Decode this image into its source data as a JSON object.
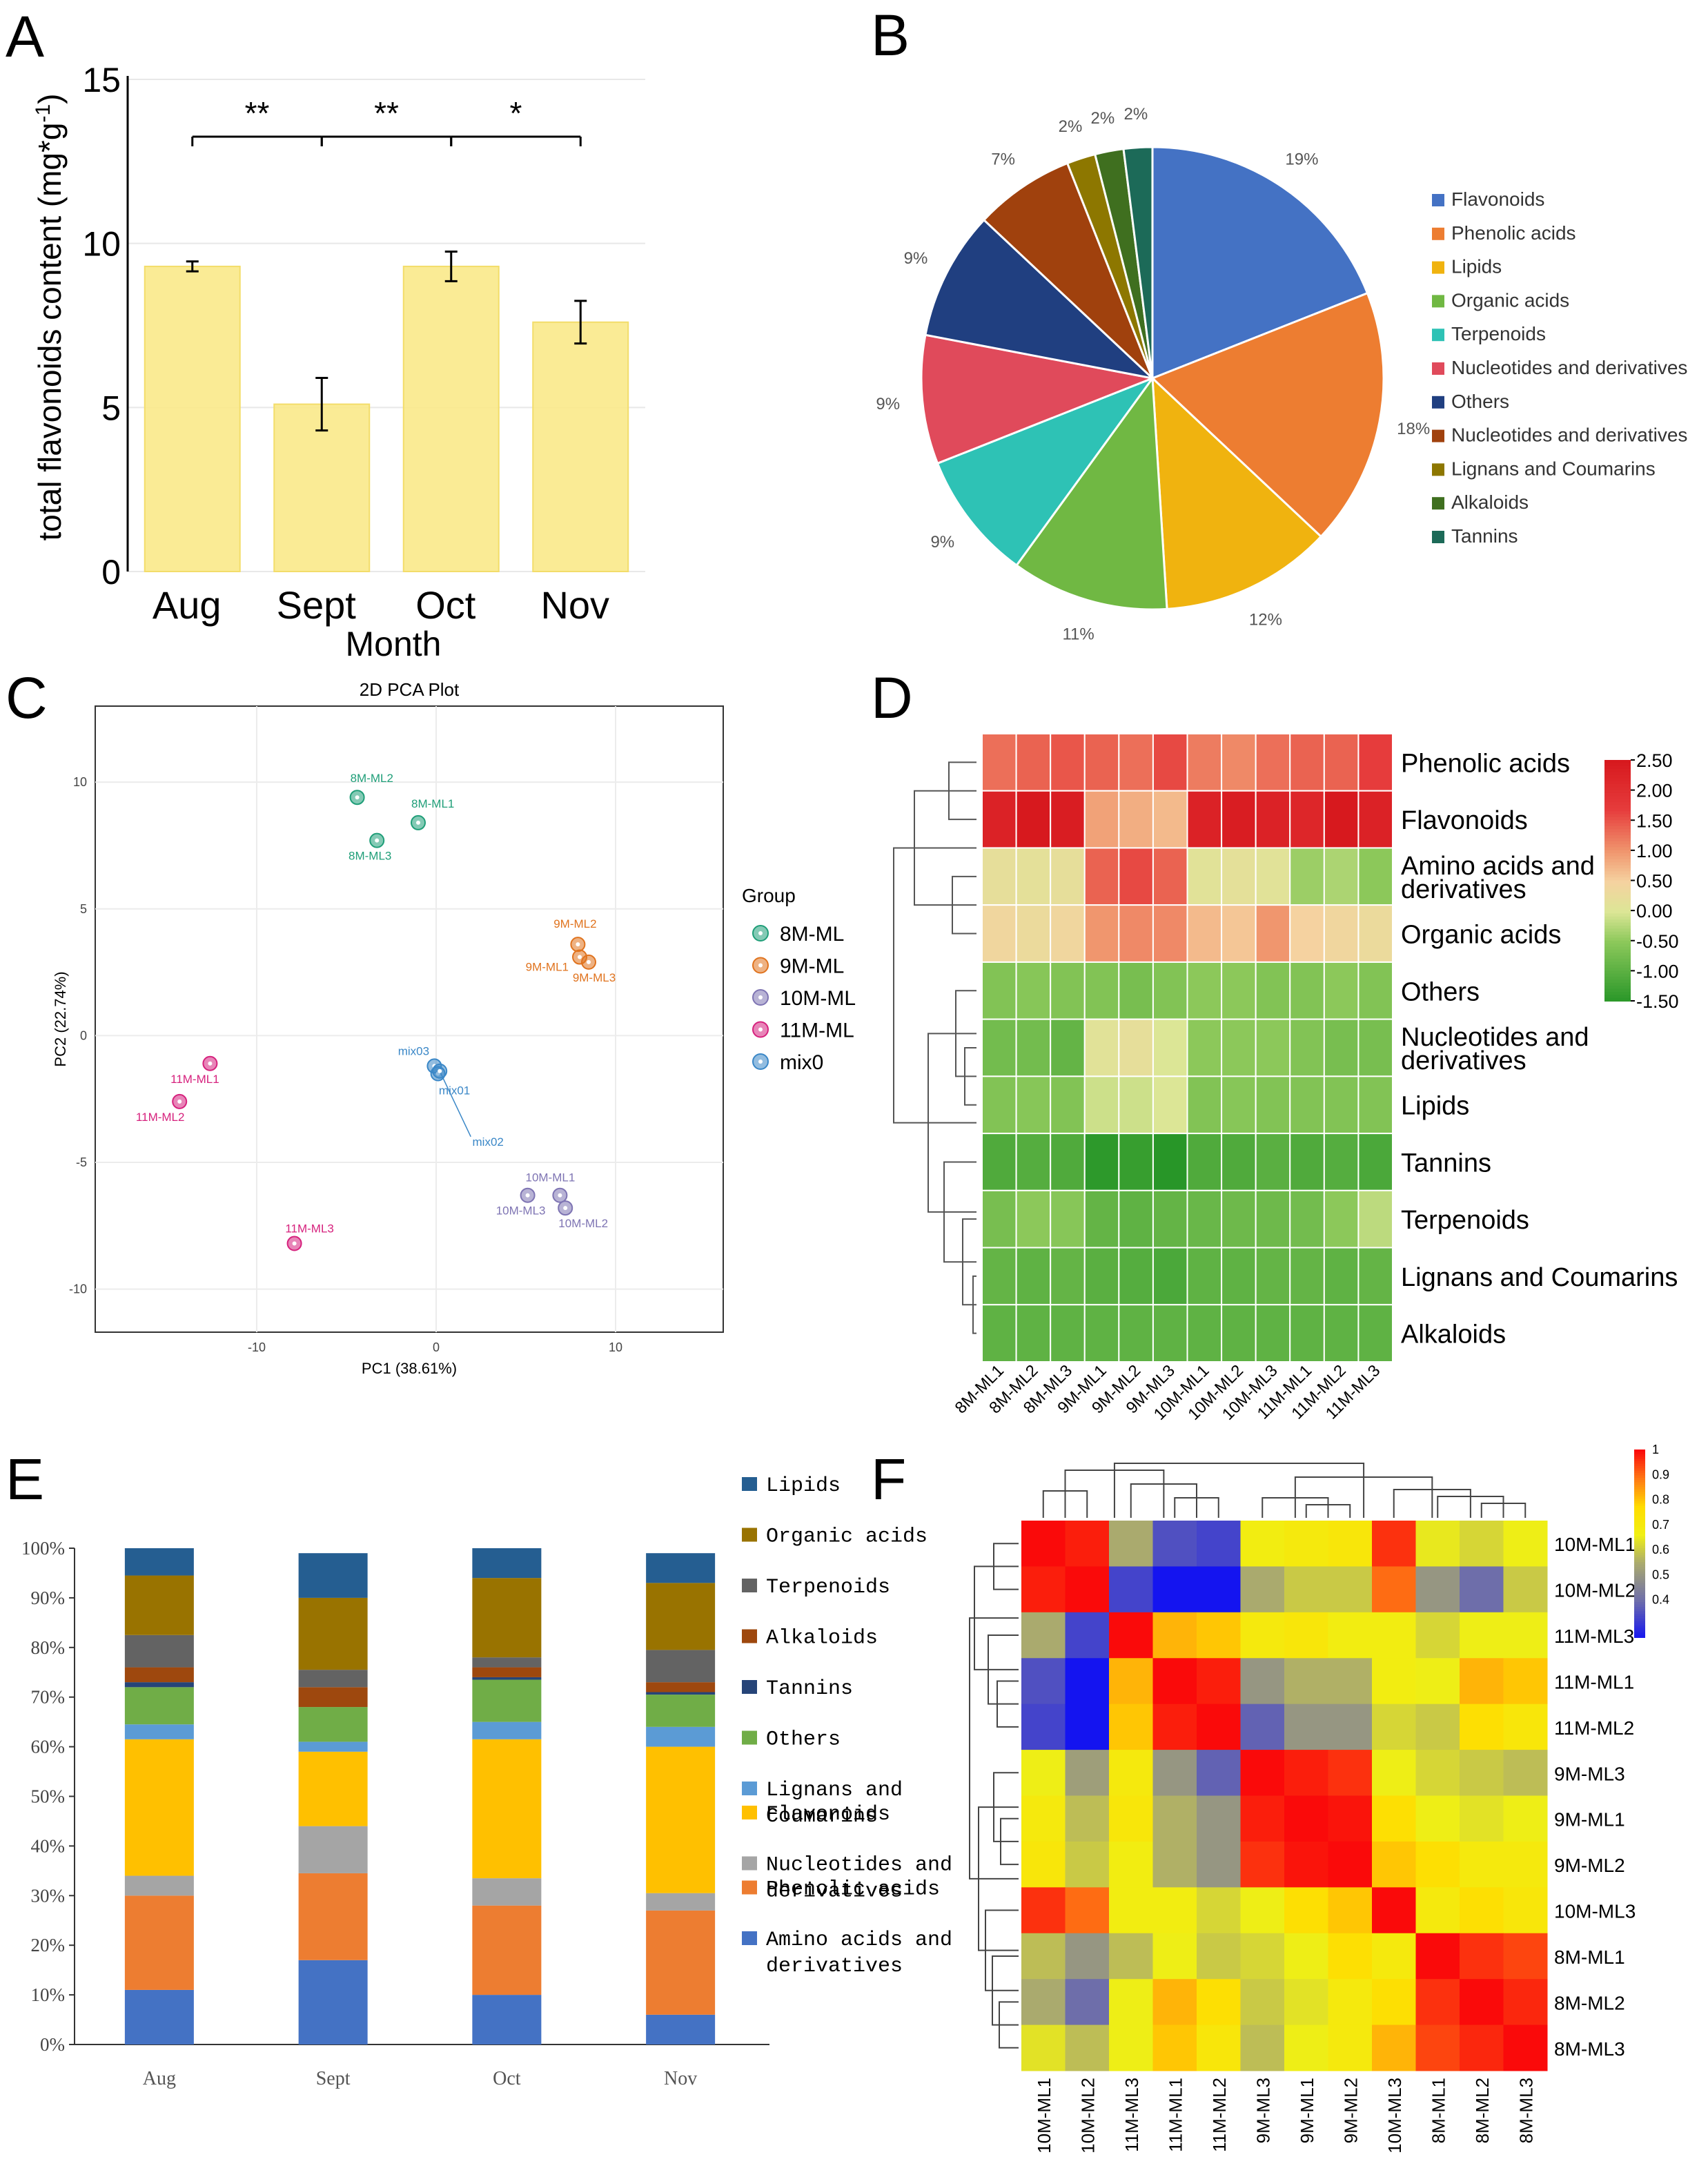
{
  "chart_data": [
    {
      "panel": "A",
      "type": "bar",
      "title": "",
      "xlabel": "Month",
      "ylabel": "total flavonoids content (mg*g",
      "ylabel_sup": "-1",
      "ylabel_tail": ")",
      "ylim": [
        0,
        15
      ],
      "yticks": [
        "0",
        "5",
        "10",
        "15"
      ],
      "categories": [
        "Aug",
        "Sept",
        "Oct",
        "Nov"
      ],
      "values": [
        9.3,
        5.1,
        9.3,
        7.6
      ],
      "errors": [
        0.15,
        0.8,
        0.45,
        0.65
      ],
      "bar_color": "#f9e98a",
      "significance": [
        {
          "from": 0,
          "to": 1,
          "label": "**"
        },
        {
          "from": 1,
          "to": 2,
          "label": "**"
        },
        {
          "from": 2,
          "to": 3,
          "label": "*"
        }
      ]
    },
    {
      "panel": "B",
      "type": "pie",
      "slices": [
        {
          "label": "Flavonoids",
          "value": 19,
          "text": "19%",
          "color": "#4472c4"
        },
        {
          "label": "Phenolic acids",
          "value": 18,
          "text": "18%",
          "color": "#ed7d31"
        },
        {
          "label": "Lipids",
          "value": 12,
          "text": "12%",
          "color": "#f0b30f"
        },
        {
          "label": "Organic acids",
          "value": 11,
          "text": "11%",
          "color": "#70b843"
        },
        {
          "label": "Terpenoids",
          "value": 9,
          "text": "9%",
          "color": "#2ec2b5"
        },
        {
          "label": "Nucleotides and derivatives",
          "value": 9,
          "text": "9%",
          "color": "#e04a5b"
        },
        {
          "label": "Others",
          "value": 9,
          "text": "9%",
          "color": "#203f80"
        },
        {
          "label": "Nucleotides and derivatives",
          "value": 7,
          "text": "7%",
          "color": "#a0410d"
        },
        {
          "label": "Lignans and Coumarins",
          "value": 2,
          "text": "2%",
          "color": "#8d7700"
        },
        {
          "label": "Alkaloids",
          "value": 2,
          "text": "2%",
          "color": "#3f6f1f"
        },
        {
          "label": "Tannins",
          "value": 2,
          "text": "2%",
          "color": "#1c6a58"
        }
      ]
    },
    {
      "panel": "C",
      "type": "scatter",
      "title": "2D PCA Plot",
      "xlabel": "PC1 (38.61%)",
      "ylabel": "PC2 (22.74%)",
      "xlim": [
        -19,
        16
      ],
      "ylim": [
        -11.7,
        13
      ],
      "xticks": [
        -10,
        0,
        10
      ],
      "yticks": [
        10,
        5,
        0,
        -5,
        -10
      ],
      "legend_title": "Group",
      "groups": [
        {
          "name": "8M-ML",
          "color": "#1f9e78"
        },
        {
          "name": "9M-ML",
          "color": "#e0731e"
        },
        {
          "name": "10M-ML",
          "color": "#7e74b3"
        },
        {
          "name": "11M-ML",
          "color": "#d6217d"
        },
        {
          "name": "mix0",
          "color": "#3a87c7"
        }
      ],
      "points": [
        {
          "label": "8M-ML2",
          "group": "8M-ML",
          "x": -4.4,
          "y": 9.4
        },
        {
          "label": "8M-ML1",
          "group": "8M-ML",
          "x": -1.0,
          "y": 8.4
        },
        {
          "label": "8M-ML3",
          "group": "8M-ML",
          "x": -3.3,
          "y": 7.7
        },
        {
          "label": "9M-ML2",
          "group": "9M-ML",
          "x": 7.9,
          "y": 3.6
        },
        {
          "label": "9M-ML1",
          "group": "9M-ML",
          "x": 8.0,
          "y": 3.1
        },
        {
          "label": "9M-ML3",
          "group": "9M-ML",
          "x": 8.5,
          "y": 2.9
        },
        {
          "label": "10M-ML1",
          "group": "10M-ML",
          "x": 6.9,
          "y": -6.3
        },
        {
          "label": "10M-ML3",
          "group": "10M-ML",
          "x": 5.1,
          "y": -6.3
        },
        {
          "label": "10M-ML2",
          "group": "10M-ML",
          "x": 7.2,
          "y": -6.8
        },
        {
          "label": "11M-ML1",
          "group": "11M-ML",
          "x": -12.6,
          "y": -1.1
        },
        {
          "label": "11M-ML2",
          "group": "11M-ML",
          "x": -14.3,
          "y": -2.6
        },
        {
          "label": "11M-ML3",
          "group": "11M-ML",
          "x": -7.9,
          "y": -8.2
        },
        {
          "label": "mix03",
          "group": "mix0",
          "x": -0.1,
          "y": -1.2
        },
        {
          "label": "mix01",
          "group": "mix0",
          "x": 0.1,
          "y": -1.5
        },
        {
          "label": "mix02",
          "group": "mix0",
          "x": 0.2,
          "y": -1.4
        }
      ]
    },
    {
      "panel": "D",
      "type": "heatmap",
      "columns": [
        "8M-ML1",
        "8M-ML2",
        "8M-ML3",
        "9M-ML1",
        "9M-ML2",
        "9M-ML3",
        "10M-ML1",
        "10M-ML2",
        "10M-ML3",
        "11M-ML1",
        "11M-ML2",
        "11M-ML3"
      ],
      "rows": [
        "Phenolic acids",
        "Flavonoids",
        "Amino acids and derivatives",
        "Organic acids",
        "Others",
        "Nucleotides and derivatives",
        "Lipids",
        "Tannins",
        "Terpenoids",
        "Lignans and Coumarins",
        "Alkaloids"
      ],
      "row_display": [
        [
          "Phenolic acids"
        ],
        [
          "Flavonoids"
        ],
        [
          "Amino acids and",
          "derivatives"
        ],
        [
          "Organic acids"
        ],
        [
          "Others"
        ],
        [
          "Nucleotides and",
          "derivatives"
        ],
        [
          "Lipids"
        ],
        [
          "Tannins"
        ],
        [
          "Terpenoids"
        ],
        [
          "Lignans and Coumarins"
        ],
        [
          "Alkaloids"
        ]
      ],
      "values": [
        [
          1.3,
          1.4,
          1.5,
          1.4,
          1.3,
          1.6,
          1.2,
          1.1,
          1.3,
          1.4,
          1.4,
          1.7
        ],
        [
          2.3,
          2.5,
          2.4,
          0.9,
          0.8,
          0.7,
          2.3,
          2.4,
          2.3,
          2.2,
          2.5,
          2.3
        ],
        [
          0.2,
          0.15,
          0.2,
          1.4,
          1.6,
          1.4,
          0.1,
          0.15,
          0.1,
          -0.4,
          -0.3,
          -0.5
        ],
        [
          0.4,
          0.3,
          0.4,
          1.0,
          1.1,
          1.1,
          0.7,
          0.6,
          1.0,
          0.5,
          0.4,
          0.3
        ],
        [
          -0.6,
          -0.55,
          -0.6,
          -0.6,
          -0.7,
          -0.6,
          -0.5,
          -0.5,
          -0.6,
          -0.6,
          -0.5,
          -0.6
        ],
        [
          -0.75,
          -0.75,
          -0.9,
          0.1,
          0.2,
          0.0,
          -0.5,
          -0.5,
          -0.5,
          -0.6,
          -0.7,
          -0.7
        ],
        [
          -0.6,
          -0.55,
          -0.6,
          -0.1,
          -0.1,
          0.0,
          -0.6,
          -0.55,
          -0.6,
          -0.6,
          -0.6,
          -0.6
        ],
        [
          -1.1,
          -1.05,
          -1.1,
          -1.45,
          -1.35,
          -1.55,
          -1.1,
          -1.1,
          -1.0,
          -1.1,
          -1.05,
          -1.15
        ],
        [
          -0.7,
          -0.5,
          -0.55,
          -0.9,
          -0.95,
          -0.9,
          -0.85,
          -0.8,
          -0.8,
          -0.75,
          -0.5,
          -0.2
        ],
        [
          -0.9,
          -0.95,
          -0.9,
          -1.0,
          -1.05,
          -1.15,
          -0.95,
          -0.95,
          -0.9,
          -0.9,
          -0.95,
          -0.9
        ],
        [
          -0.95,
          -0.95,
          -0.95,
          -0.95,
          -0.95,
          -0.95,
          -0.95,
          -0.95,
          -0.95,
          -0.95,
          -0.95,
          -0.95
        ]
      ],
      "color_range": [
        -1.5,
        2.5
      ],
      "colorbar_ticks": [
        "2.50",
        "2.00",
        "1.50",
        "1.00",
        "0.50",
        "0.00",
        "-0.50",
        "-1.00",
        "-1.50"
      ]
    },
    {
      "panel": "E",
      "type": "bar",
      "stacked": true,
      "categories": [
        "Aug",
        "Sept",
        "Oct",
        "Nov"
      ],
      "yticks": [
        "0%",
        "10%",
        "20%",
        "30%",
        "40%",
        "50%",
        "60%",
        "70%",
        "80%",
        "90%",
        "100%"
      ],
      "series": [
        {
          "name": "Amino acids and derivatives",
          "color": "#4472c4",
          "values": [
            11,
            17,
            10,
            6
          ]
        },
        {
          "name": "Phenolic acids",
          "color": "#ed7d31",
          "values": [
            19,
            17.5,
            18,
            21
          ]
        },
        {
          "name": "Nucleotides and derivatives",
          "color": "#a5a5a5",
          "values": [
            4,
            9.5,
            5.5,
            3.5
          ]
        },
        {
          "name": "Flavonoids",
          "color": "#ffc000",
          "values": [
            27.5,
            15,
            28,
            29.5
          ]
        },
        {
          "name": "Lignans and Coumarins",
          "color": "#5b9bd5",
          "values": [
            3,
            2,
            3.5,
            4
          ]
        },
        {
          "name": "Others",
          "color": "#70ad47",
          "values": [
            7.5,
            7,
            8.5,
            6.5
          ]
        },
        {
          "name": "Tannins",
          "color": "#264478",
          "values": [
            1,
            0,
            0.5,
            0.5
          ]
        },
        {
          "name": "Alkaloids",
          "color": "#9e480e",
          "values": [
            3,
            4,
            2,
            2
          ]
        },
        {
          "name": "Terpenoids",
          "color": "#636363",
          "values": [
            6.5,
            3.5,
            2,
            6.5
          ]
        },
        {
          "name": "Organic acids",
          "color": "#997300",
          "values": [
            12,
            14.5,
            16,
            13.5
          ]
        },
        {
          "name": "Lipids",
          "color": "#255e91",
          "values": [
            5.5,
            9,
            6,
            6
          ]
        }
      ],
      "legend_order": [
        [
          "Lipids"
        ],
        [
          "Organic acids"
        ],
        [
          "Terpenoids"
        ],
        [
          "Alkaloids"
        ],
        [
          "Tannins"
        ],
        [
          "Others"
        ],
        [
          "Lignans and",
          "Coumarins"
        ],
        [
          "Flavonoids"
        ],
        [
          "Nucleotides and",
          "derivatives"
        ],
        [
          "Phenolic acids"
        ],
        [
          "Amino acids and",
          "derivatives"
        ]
      ],
      "legend_colors": [
        "#255e91",
        "#997300",
        "#636363",
        "#9e480e",
        "#264478",
        "#70ad47",
        "#5b9bd5",
        "#ffc000",
        "#a5a5a5",
        "#ed7d31",
        "#4472c4"
      ]
    },
    {
      "panel": "F",
      "type": "heatmap",
      "columns": [
        "10M-ML1",
        "10M-ML2",
        "11M-ML3",
        "11M-ML1",
        "11M-ML2",
        "9M-ML3",
        "9M-ML1",
        "9M-ML2",
        "10M-ML3",
        "8M-ML1",
        "8M-ML2",
        "8M-ML3"
      ],
      "rows": [
        "10M-ML1",
        "10M-ML2",
        "11M-ML3",
        "11M-ML1",
        "11M-ML2",
        "9M-ML3",
        "9M-ML1",
        "9M-ML2",
        "10M-ML3",
        "8M-ML1",
        "8M-ML2",
        "8M-ML3"
      ],
      "values": [
        [
          1.0,
          0.98,
          0.55,
          0.35,
          0.33,
          0.68,
          0.7,
          0.72,
          0.96,
          0.65,
          0.62,
          0.66
        ],
        [
          0.98,
          1.0,
          0.33,
          0.25,
          0.25,
          0.55,
          0.6,
          0.6,
          0.9,
          0.5,
          0.4,
          0.6
        ],
        [
          0.55,
          0.33,
          1.0,
          0.82,
          0.8,
          0.7,
          0.72,
          0.68,
          0.68,
          0.62,
          0.66,
          0.66
        ],
        [
          0.35,
          0.25,
          0.82,
          1.0,
          0.98,
          0.5,
          0.56,
          0.56,
          0.68,
          0.66,
          0.82,
          0.8
        ],
        [
          0.33,
          0.25,
          0.8,
          0.98,
          1.0,
          0.38,
          0.5,
          0.5,
          0.62,
          0.6,
          0.76,
          0.72
        ],
        [
          0.66,
          0.52,
          0.7,
          0.5,
          0.38,
          1.0,
          0.98,
          0.96,
          0.66,
          0.62,
          0.6,
          0.58
        ],
        [
          0.7,
          0.58,
          0.72,
          0.56,
          0.5,
          0.98,
          1.0,
          0.99,
          0.76,
          0.66,
          0.64,
          0.66
        ],
        [
          0.72,
          0.6,
          0.68,
          0.56,
          0.5,
          0.96,
          0.99,
          1.0,
          0.8,
          0.76,
          0.7,
          0.7
        ],
        [
          0.96,
          0.9,
          0.68,
          0.68,
          0.62,
          0.66,
          0.76,
          0.8,
          1.0,
          0.7,
          0.76,
          0.72
        ],
        [
          0.58,
          0.5,
          0.58,
          0.66,
          0.6,
          0.62,
          0.66,
          0.76,
          0.7,
          1.0,
          0.96,
          0.94
        ],
        [
          0.55,
          0.4,
          0.66,
          0.82,
          0.76,
          0.6,
          0.64,
          0.7,
          0.76,
          0.96,
          1.0,
          0.97
        ],
        [
          0.64,
          0.58,
          0.66,
          0.8,
          0.72,
          0.58,
          0.66,
          0.7,
          0.82,
          0.94,
          0.97,
          1.0
        ]
      ],
      "color_range": [
        0.25,
        1.0
      ],
      "colorbar_ticks": [
        "1",
        "0.9",
        "0.8",
        "0.7",
        "0.6",
        "0.5",
        "0.4"
      ]
    }
  ],
  "panel_labels": [
    "A",
    "B",
    "C",
    "D",
    "E",
    "F"
  ],
  "colors": {
    "axis": "#000000",
    "grid": "#e6e6e6"
  }
}
